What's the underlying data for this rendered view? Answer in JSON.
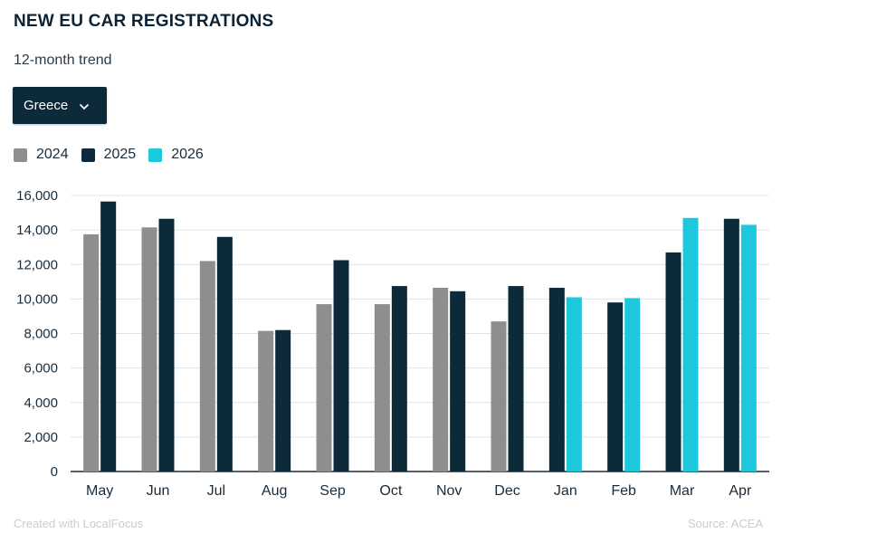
{
  "header": {
    "title": "NEW EU CAR REGISTRATIONS",
    "subtitle": "12-month trend"
  },
  "selector": {
    "selected": "Greece",
    "icon": "chevron-down-icon"
  },
  "legend": [
    {
      "label": "2024",
      "color": "#8c8f8e"
    },
    {
      "label": "2025",
      "color": "#0d2a3b"
    },
    {
      "label": "2026",
      "color": "#1ec8dc"
    }
  ],
  "footer": {
    "credit": "Created with LocalFocus",
    "source": "Source: ACEA"
  },
  "chart_data": {
    "type": "bar",
    "categories": [
      "May",
      "Jun",
      "Jul",
      "Aug",
      "Sep",
      "Oct",
      "Nov",
      "Dec",
      "Jan",
      "Feb",
      "Mar",
      "Apr"
    ],
    "series": [
      {
        "name": "2024",
        "color": "#8c8f8e",
        "values": [
          13750,
          14150,
          12200,
          8150,
          9700,
          9700,
          10650,
          8700,
          null,
          null,
          null,
          null
        ]
      },
      {
        "name": "2025",
        "color": "#0d2a3b",
        "values": [
          15650,
          14650,
          13600,
          8200,
          12250,
          10750,
          10450,
          10750,
          10650,
          9800,
          12700,
          14650
        ]
      },
      {
        "name": "2026",
        "color": "#1ec8dc",
        "values": [
          null,
          null,
          null,
          null,
          null,
          null,
          null,
          null,
          10100,
          10050,
          14700,
          14300
        ]
      }
    ],
    "y_ticks": [
      "0",
      "2,000",
      "4,000",
      "6,000",
      "8,000",
      "10,000",
      "12,000",
      "14,000",
      "16,000"
    ],
    "ylim": [
      0,
      16000
    ],
    "grid": true,
    "legend_position": "top-left"
  }
}
